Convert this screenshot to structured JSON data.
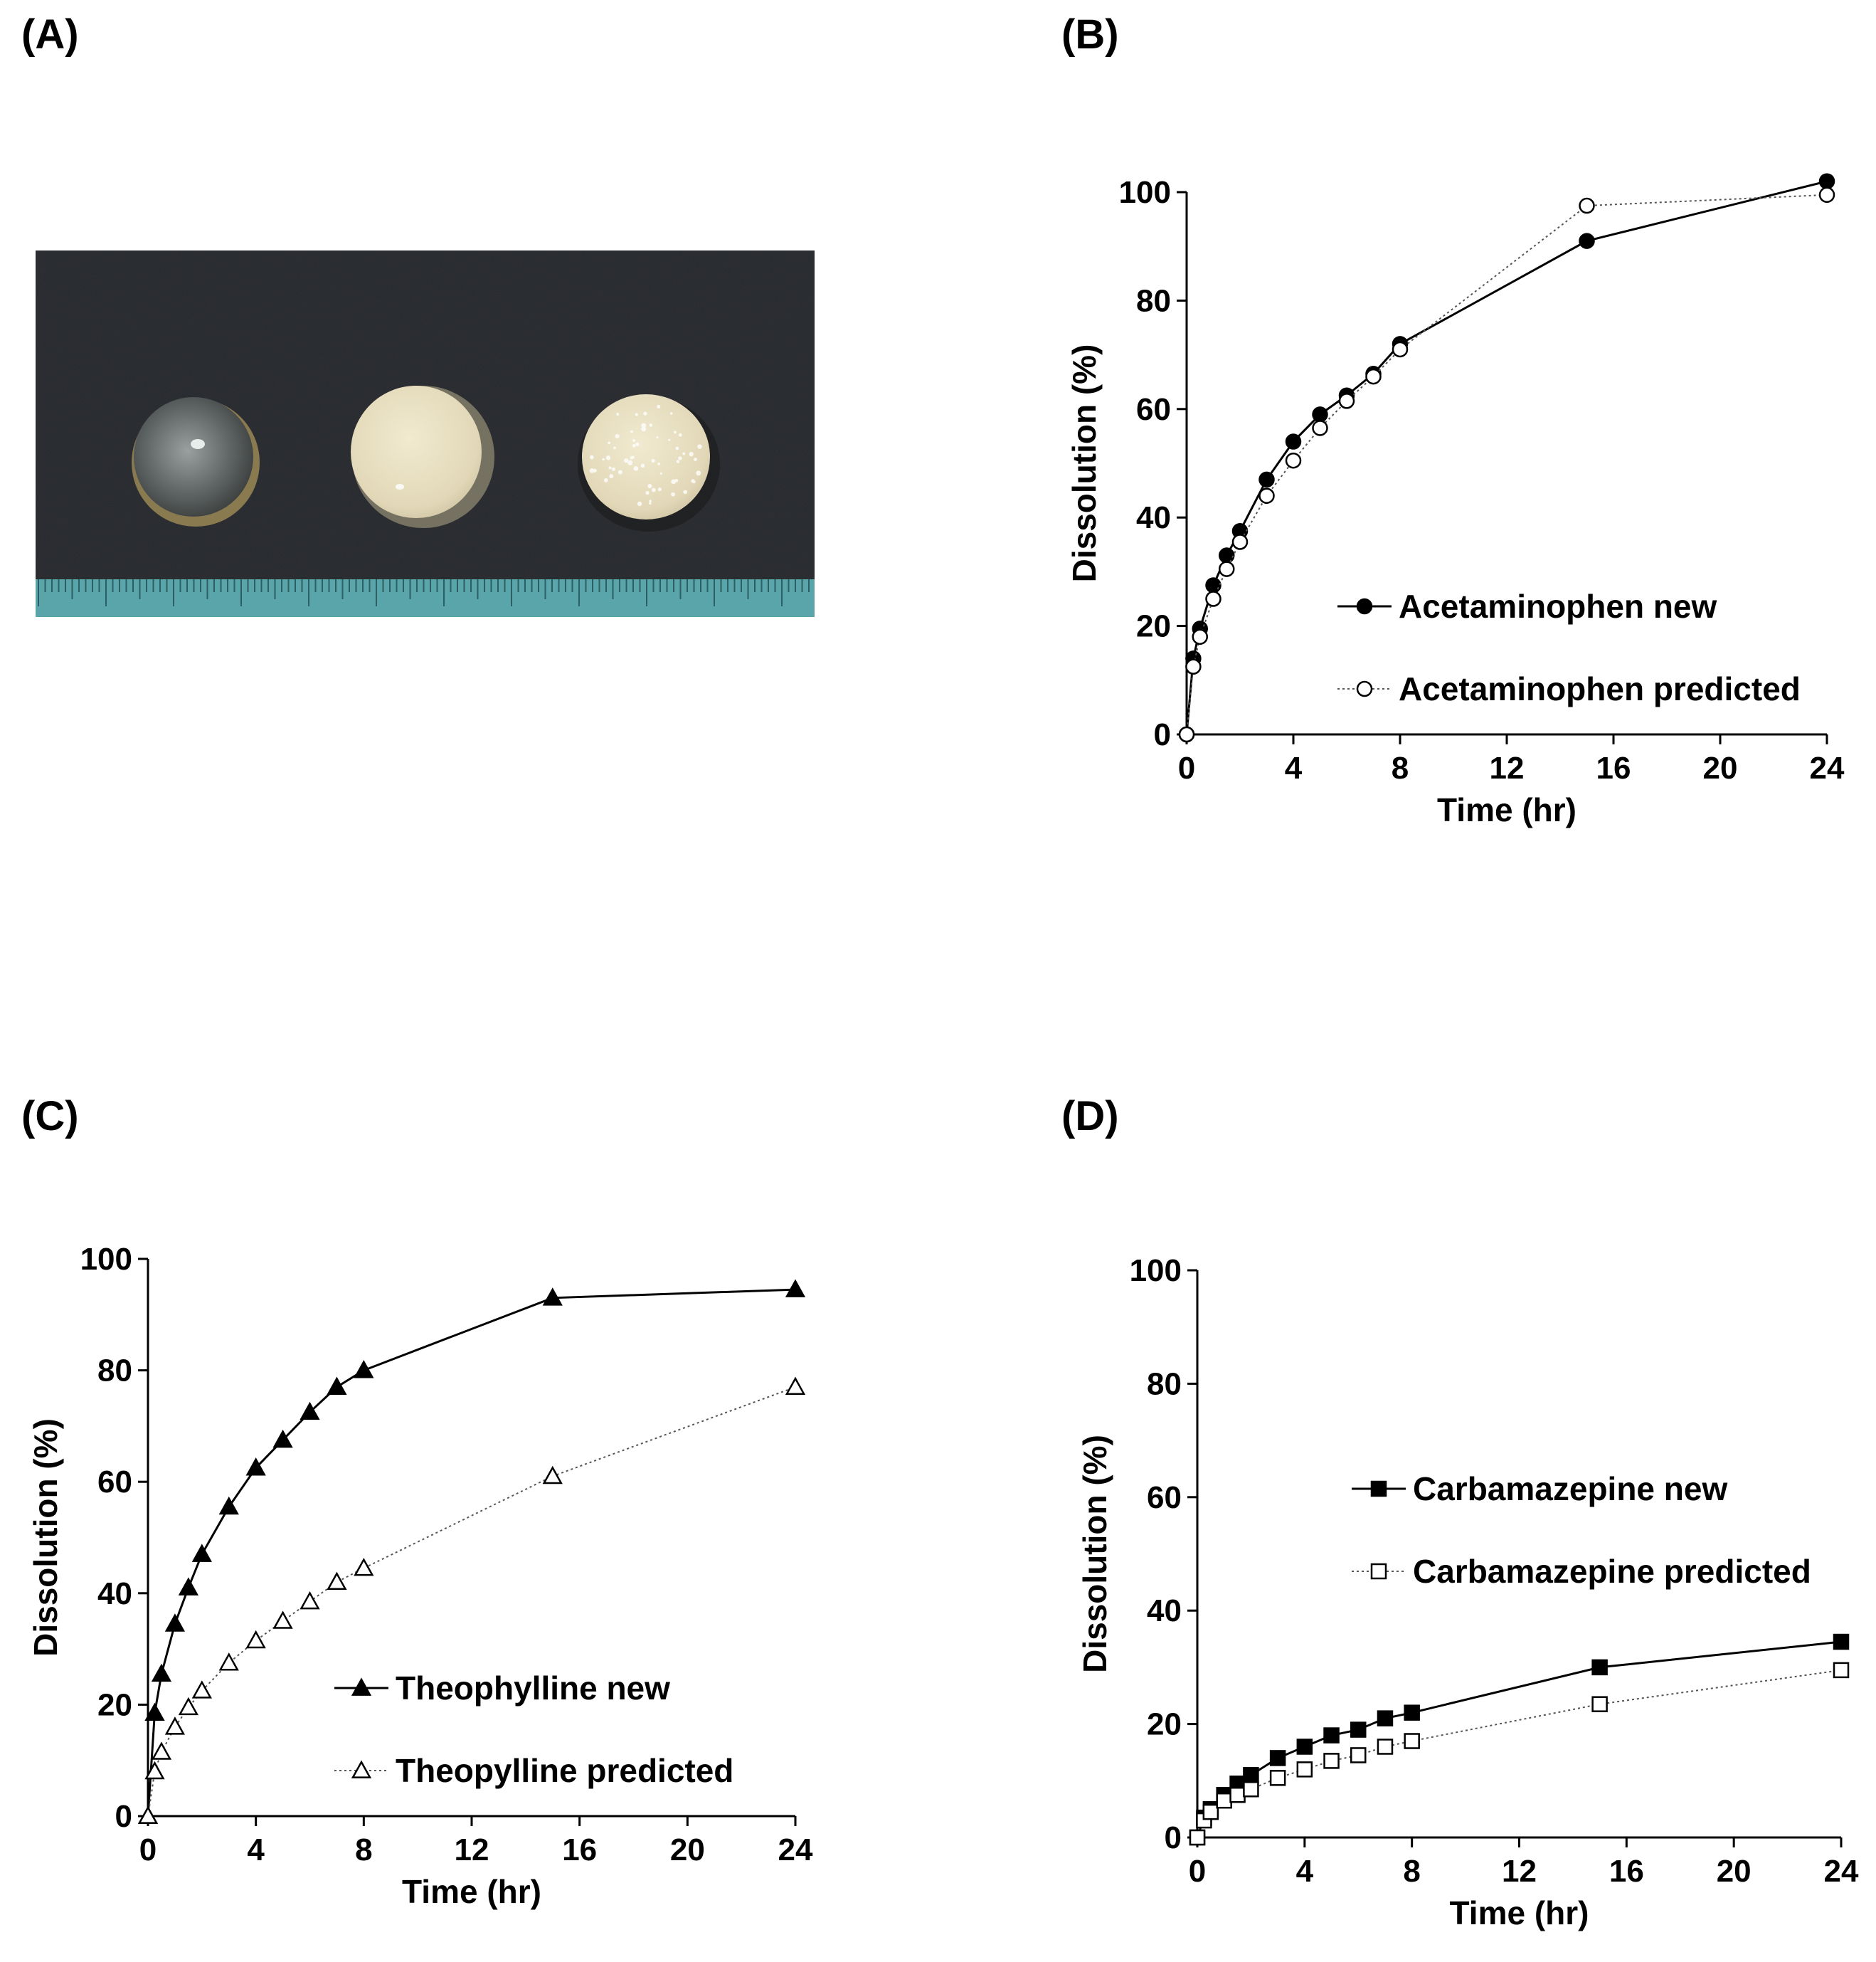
{
  "panels": {
    "a": {
      "label": "(A)"
    },
    "b": {
      "label": "(B)"
    },
    "c": {
      "label": "(C)"
    },
    "d": {
      "label": "(D)"
    }
  },
  "photo": {
    "description_colors": {
      "background": "#2b2b2d",
      "ruler": "#5aa8ad",
      "tablet": "#e8e0c4",
      "transparent_tablet": "#6f7272"
    }
  },
  "chart_data": [
    {
      "panel": "B",
      "type": "line",
      "xlabel": "Time (hr)",
      "ylabel": "Dissolution (%)",
      "xlim": [
        0,
        24
      ],
      "ylim": [
        0,
        100
      ],
      "xticks": [
        0,
        4,
        8,
        12,
        16,
        20,
        24
      ],
      "yticks": [
        0,
        20,
        40,
        60,
        80,
        100
      ],
      "legend_position": "center-right",
      "series": [
        {
          "name": "Acetaminophen new",
          "marker": "filled-circle",
          "line": "solid",
          "x": [
            0,
            0.25,
            0.5,
            1,
            1.5,
            2,
            3,
            4,
            5,
            6,
            7,
            8,
            15,
            24
          ],
          "y": [
            0,
            14,
            19.5,
            27.5,
            33,
            37.5,
            47,
            54,
            59,
            62.5,
            66.5,
            72,
            91,
            102
          ]
        },
        {
          "name": "Acetaminophen predicted",
          "marker": "open-circle",
          "line": "dotted",
          "x": [
            0,
            0.25,
            0.5,
            1,
            1.5,
            2,
            3,
            4,
            5,
            6,
            7,
            8,
            15,
            24
          ],
          "y": [
            0,
            12.5,
            18,
            25,
            30.5,
            35.5,
            44,
            50.5,
            56.5,
            61.5,
            66,
            71,
            97.5,
            99.5
          ]
        }
      ]
    },
    {
      "panel": "C",
      "type": "line",
      "xlabel": "Time (hr)",
      "ylabel": "Dissolution (%)",
      "xlim": [
        0,
        24
      ],
      "ylim": [
        0,
        100
      ],
      "xticks": [
        0,
        4,
        8,
        12,
        16,
        20,
        24
      ],
      "yticks": [
        0,
        20,
        40,
        60,
        80,
        100
      ],
      "legend_position": "center-right",
      "series": [
        {
          "name": "Theophylline new",
          "marker": "filled-triangle",
          "line": "solid",
          "x": [
            0,
            0.25,
            0.5,
            1,
            1.5,
            2,
            3,
            4,
            5,
            6,
            7,
            8,
            15,
            24
          ],
          "y": [
            0,
            18.5,
            25.5,
            34.5,
            41,
            47,
            55.5,
            62.5,
            67.5,
            72.5,
            77,
            80,
            93,
            94.5
          ]
        },
        {
          "name": "Theopylline predicted",
          "marker": "open-triangle",
          "line": "dotted",
          "x": [
            0,
            0.25,
            0.5,
            1,
            1.5,
            2,
            3,
            4,
            5,
            6,
            7,
            8,
            15,
            24
          ],
          "y": [
            0,
            8,
            11.5,
            16,
            19.5,
            22.5,
            27.5,
            31.5,
            35,
            38.5,
            42,
            44.5,
            61,
            77
          ]
        }
      ]
    },
    {
      "panel": "D",
      "type": "line",
      "xlabel": "Time (hr)",
      "ylabel": "Dissolution (%)",
      "xlim": [
        0,
        24
      ],
      "ylim": [
        0,
        100
      ],
      "xticks": [
        0,
        4,
        8,
        12,
        16,
        20,
        24
      ],
      "yticks": [
        0,
        20,
        40,
        60,
        80,
        100
      ],
      "legend_position": "center-right",
      "series": [
        {
          "name": "Carbamazepine new",
          "marker": "filled-square",
          "line": "solid",
          "x": [
            0,
            0.25,
            0.5,
            1,
            1.5,
            2,
            3,
            4,
            5,
            6,
            7,
            8,
            15,
            24
          ],
          "y": [
            0,
            3.5,
            5,
            7.5,
            9.5,
            11,
            14,
            16,
            18,
            19,
            21,
            22,
            30,
            34.5
          ]
        },
        {
          "name": "Carbamazepine predicted",
          "marker": "open-square",
          "line": "dotted",
          "x": [
            0,
            0.25,
            0.5,
            1,
            1.5,
            2,
            3,
            4,
            5,
            6,
            7,
            8,
            15,
            24
          ],
          "y": [
            0,
            3,
            4.5,
            6.5,
            7.5,
            8.5,
            10.5,
            12,
            13.5,
            14.5,
            16,
            17,
            23.5,
            29.5
          ]
        }
      ]
    }
  ]
}
